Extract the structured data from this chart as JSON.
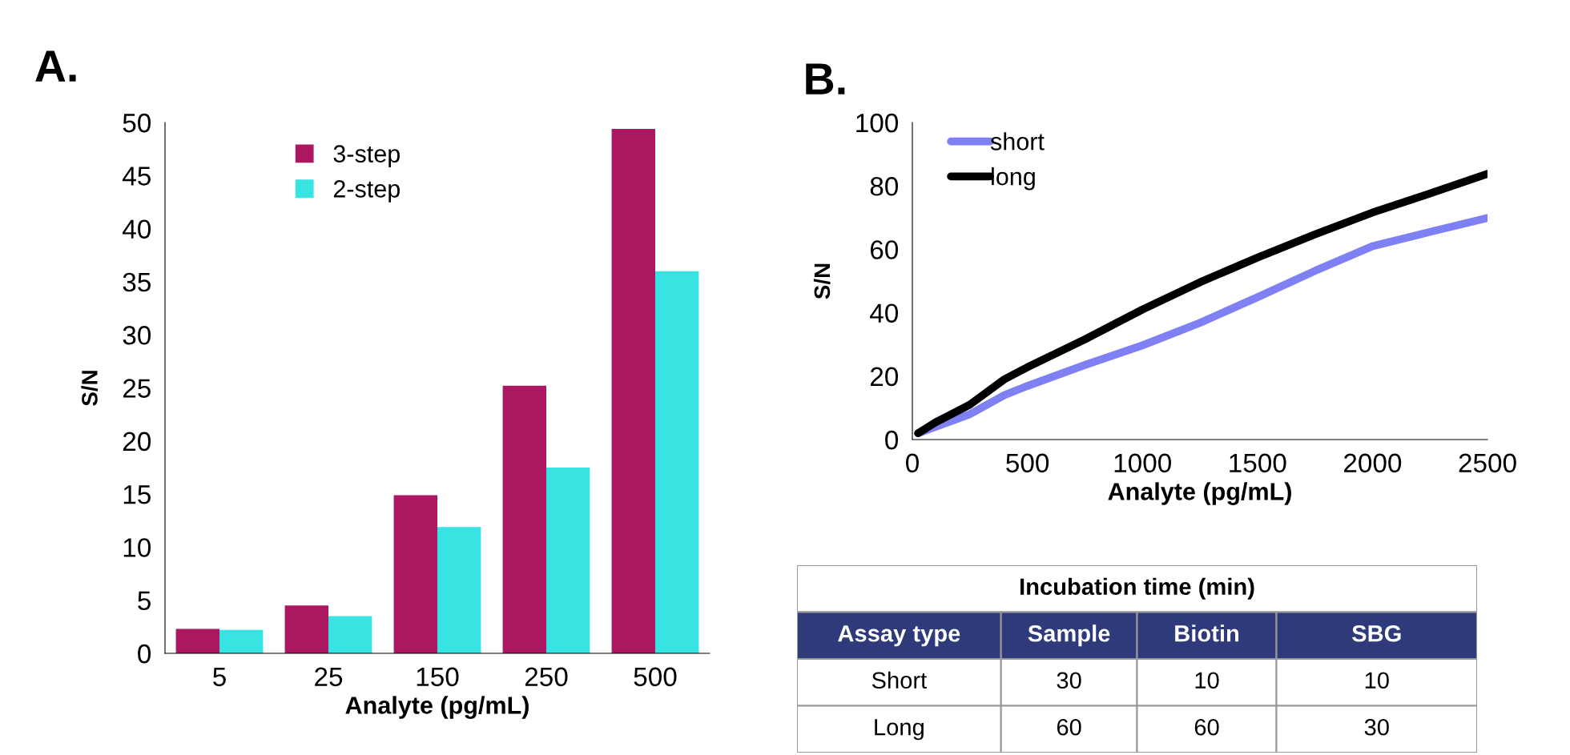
{
  "chart_data": [
    {
      "type": "bar",
      "title": "A.",
      "xlabel": "Analyte (pg/mL)",
      "ylabel": "S/N",
      "categories": [
        "5",
        "25",
        "150",
        "250",
        "500"
      ],
      "ylim": [
        0,
        50
      ],
      "yticks": [
        0,
        5,
        10,
        15,
        20,
        25,
        30,
        35,
        40,
        45,
        50
      ],
      "legend": "top left",
      "grid": false,
      "series": [
        {
          "name": "3-step",
          "color": "#ab1760",
          "values": [
            2.3,
            4.5,
            14.9,
            25.2,
            49.4
          ]
        },
        {
          "name": "2-step",
          "color": "#38e4e2",
          "values": [
            2.2,
            3.5,
            11.9,
            17.5,
            36.0
          ]
        }
      ]
    },
    {
      "type": "line",
      "title": "B.",
      "xlabel": "Analyte (pg/mL)",
      "ylabel": "S/N",
      "xlim": [
        0,
        2500
      ],
      "xticks": [
        0,
        500,
        1000,
        1500,
        2000,
        2500
      ],
      "ylim": [
        0,
        100
      ],
      "yticks": [
        0,
        20,
        40,
        60,
        80,
        100
      ],
      "legend": "top left",
      "grid": false,
      "marker": "none",
      "line_style": "solid",
      "x": [
        25,
        100,
        250,
        400,
        500,
        750,
        1000,
        1250,
        1500,
        1750,
        2000,
        2250,
        2500
      ],
      "series": [
        {
          "name": "short",
          "color": "#8080f5",
          "values": [
            2,
            4,
            8,
            14,
            16.9,
            23.5,
            29.7,
            36.8,
            44.9,
            53.2,
            61,
            65.5,
            69.9
          ]
        },
        {
          "name": "long",
          "color": "#000000",
          "values": [
            2,
            5.4,
            11,
            19,
            22.8,
            31.6,
            41,
            49.6,
            57.4,
            64.7,
            71.6,
            77.6,
            83.8
          ]
        }
      ]
    },
    {
      "type": "other",
      "title": "Incubation time (min)",
      "ylabel": "Assay type",
      "categories": [
        "Sample",
        "Biotin",
        "SBG"
      ],
      "y_categories": [
        "Short",
        "Long"
      ],
      "cell_labels": [
        [
          "30",
          "10",
          "10"
        ],
        [
          "60",
          "60",
          "30"
        ]
      ]
    }
  ]
}
